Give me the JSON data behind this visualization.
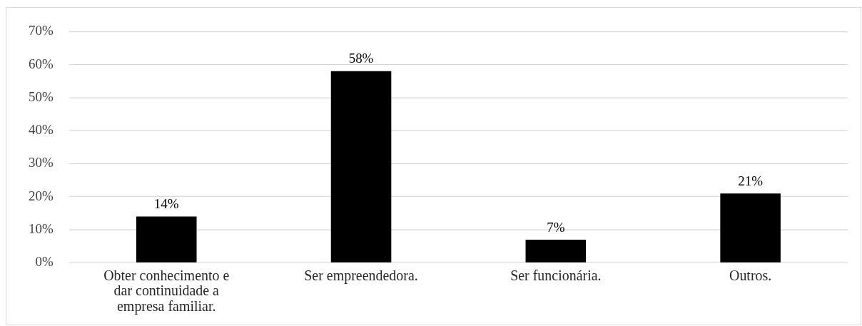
{
  "chart_data": {
    "type": "bar",
    "categories": [
      "Obter conhecimento e dar continuidade a empresa familiar.",
      "Ser empreendedora.",
      "Ser funcionária.",
      "Outros."
    ],
    "values": [
      14,
      58,
      7,
      21
    ],
    "color": "#000000",
    "value_labels": [
      "14%",
      "58%",
      "7%",
      "21%"
    ],
    "ylim": [
      0,
      70
    ],
    "yticks": [
      {
        "value": 0,
        "label": "0%"
      },
      {
        "value": 10,
        "label": "10%"
      },
      {
        "value": 20,
        "label": "20%"
      },
      {
        "value": 30,
        "label": "30%"
      },
      {
        "value": 40,
        "label": "40%"
      },
      {
        "value": 50,
        "label": "50%"
      },
      {
        "value": 60,
        "label": "60%"
      },
      {
        "value": 70,
        "label": "70%"
      }
    ],
    "grid": "y"
  }
}
